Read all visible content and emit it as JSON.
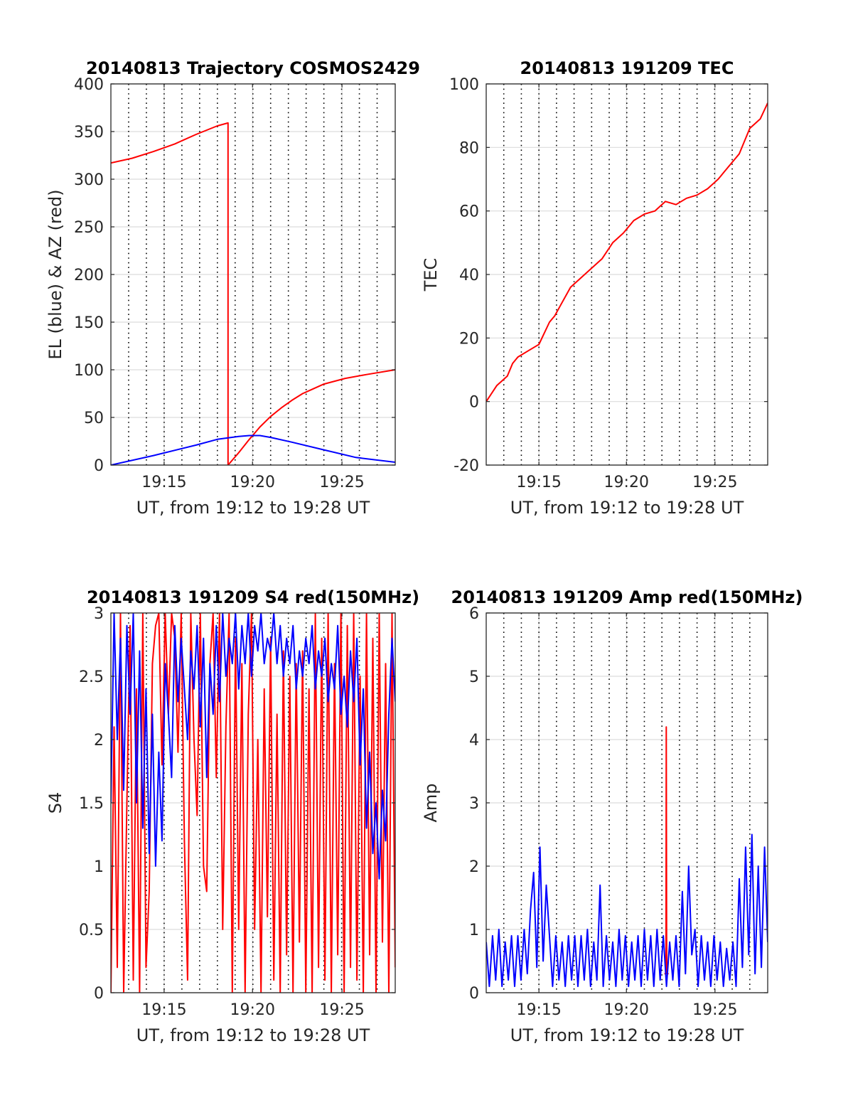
{
  "chart_data": [
    {
      "id": "trajectory",
      "type": "line",
      "title": "20140813 Trajectory COSMOS2429",
      "xlabel": "UT, from 19:12 to 19:28 UT",
      "ylabel": "EL (blue) & AZ (red)",
      "xlim": [
        19.2,
        19.467
      ],
      "ylim": [
        0,
        400
      ],
      "xticks": [
        19.25,
        19.333,
        19.417
      ],
      "xtick_labels": [
        "19:15",
        "19:20",
        "19:25"
      ],
      "yticks": [
        0,
        50,
        100,
        150,
        200,
        250,
        300,
        350,
        400
      ],
      "ytick_labels": [
        "0",
        "50",
        "100",
        "150",
        "200",
        "250",
        "300",
        "350",
        "400"
      ],
      "grid": true,
      "minute_gridlines": true,
      "series": [
        {
          "color": "#ff0000",
          "x": [
            19.2,
            19.22,
            19.24,
            19.26,
            19.28,
            19.3,
            19.31,
            19.31,
            19.32,
            19.33,
            19.34,
            19.35,
            19.36,
            19.37,
            19.38,
            19.39,
            19.4,
            19.42,
            19.44,
            19.467
          ],
          "y": [
            317,
            322,
            329,
            337,
            347,
            356,
            359,
            0,
            13,
            27,
            40,
            51,
            60,
            68,
            75,
            80,
            85,
            91,
            95,
            100
          ]
        },
        {
          "color": "#0000ff",
          "x": [
            19.2,
            19.24,
            19.28,
            19.3,
            19.32,
            19.33,
            19.34,
            19.35,
            19.37,
            19.4,
            19.43,
            19.467
          ],
          "y": [
            0,
            10,
            21,
            27,
            30,
            31,
            31,
            29,
            24,
            16,
            8,
            3
          ]
        }
      ]
    },
    {
      "id": "tec",
      "type": "line",
      "title": "20140813 191209 TEC",
      "xlabel": "UT, from 19:12 to 19:28 UT",
      "ylabel": "TEC",
      "xlim": [
        19.2,
        19.467
      ],
      "ylim": [
        -20,
        100
      ],
      "xticks": [
        19.25,
        19.333,
        19.417
      ],
      "xtick_labels": [
        "19:15",
        "19:20",
        "19:25"
      ],
      "yticks": [
        -20,
        0,
        20,
        40,
        60,
        80,
        100
      ],
      "ytick_labels": [
        "-20",
        "0",
        "20",
        "40",
        "60",
        "80",
        "100"
      ],
      "grid": true,
      "minute_gridlines": true,
      "series": [
        {
          "color": "#ff0000",
          "x": [
            19.2,
            19.21,
            19.22,
            19.225,
            19.23,
            19.24,
            19.25,
            19.26,
            19.265,
            19.27,
            19.28,
            19.29,
            19.3,
            19.31,
            19.32,
            19.33,
            19.34,
            19.35,
            19.36,
            19.37,
            19.38,
            19.39,
            19.4,
            19.41,
            19.42,
            19.43,
            19.44,
            19.45,
            19.46,
            19.467
          ],
          "y": [
            0,
            5,
            8,
            12,
            14,
            16,
            18,
            25,
            27,
            30,
            36,
            39,
            42,
            45,
            50,
            53,
            57,
            59,
            60,
            63,
            62,
            64,
            65,
            67,
            70,
            74,
            78,
            86,
            89,
            94
          ]
        }
      ]
    },
    {
      "id": "s4",
      "type": "line",
      "title": "20140813 191209 S4 red(150MHz)",
      "xlabel": "UT, from 19:12 to 19:28 UT",
      "ylabel": "S4",
      "xlim": [
        19.2,
        19.467
      ],
      "ylim": [
        0,
        3
      ],
      "xticks": [
        19.25,
        19.333,
        19.417
      ],
      "xtick_labels": [
        "19:15",
        "19:20",
        "19:25"
      ],
      "yticks": [
        0,
        0.5,
        1,
        1.5,
        2,
        2.5,
        3
      ],
      "ytick_labels": [
        "0",
        "0.5",
        "1",
        "1.5",
        "2",
        "2.5",
        "3"
      ],
      "grid": true,
      "minute_gridlines": true,
      "series": [
        {
          "color": "#ff0000",
          "x": [
            19.2,
            19.203,
            19.206,
            19.209,
            19.212,
            19.215,
            19.218,
            19.221,
            19.224,
            19.227,
            19.23,
            19.233,
            19.236,
            19.239,
            19.242,
            19.245,
            19.248,
            19.251,
            19.254,
            19.257,
            19.26,
            19.263,
            19.266,
            19.269,
            19.272,
            19.275,
            19.278,
            19.281,
            19.284,
            19.287,
            19.29,
            19.293,
            19.296,
            19.299,
            19.302,
            19.305,
            19.308,
            19.311,
            19.314,
            19.317,
            19.32,
            19.323,
            19.326,
            19.329,
            19.332,
            19.335,
            19.338,
            19.341,
            19.344,
            19.347,
            19.35,
            19.353,
            19.356,
            19.359,
            19.362,
            19.365,
            19.368,
            19.371,
            19.374,
            19.377,
            19.38,
            19.383,
            19.386,
            19.389,
            19.392,
            19.395,
            19.398,
            19.401,
            19.404,
            19.407,
            19.41,
            19.413,
            19.416,
            19.419,
            19.422,
            19.425,
            19.428,
            19.431,
            19.434,
            19.437,
            19.44,
            19.443,
            19.446,
            19.449,
            19.452,
            19.455,
            19.458,
            19.461,
            19.464,
            19.467
          ],
          "y": [
            0,
            2.1,
            0.2,
            3,
            0,
            1.5,
            2.9,
            0.1,
            2.4,
            0,
            3,
            0.2,
            0.8,
            2.6,
            2.9,
            3,
            1.8,
            3,
            2.2,
            3,
            2.8,
            1.9,
            3,
            1.2,
            0.1,
            3,
            2.0,
            1.4,
            3,
            1.0,
            0.8,
            2.6,
            3,
            1.7,
            3,
            0.5,
            2.1,
            3,
            0,
            2.8,
            0.5,
            2.6,
            0,
            2.2,
            3,
            0.5,
            2.0,
            0,
            2.4,
            0.6,
            2.8,
            0.1,
            2.2,
            0,
            2.7,
            0.3,
            2.5,
            0,
            2.6,
            0.4,
            2.7,
            0,
            2.4,
            0,
            3,
            0.2,
            2.8,
            0.1,
            3,
            0,
            2.6,
            0.3,
            3,
            0,
            2.9,
            0.2,
            3,
            0.1,
            2.5,
            0,
            3,
            0.3,
            2.8,
            0,
            3,
            0.4,
            2.6,
            0,
            3,
            0.2
          ]
        },
        {
          "color": "#0000ff",
          "x": [
            19.2,
            19.203,
            19.206,
            19.209,
            19.212,
            19.215,
            19.218,
            19.221,
            19.224,
            19.227,
            19.23,
            19.233,
            19.236,
            19.239,
            19.242,
            19.245,
            19.248,
            19.251,
            19.254,
            19.257,
            19.26,
            19.263,
            19.266,
            19.269,
            19.272,
            19.275,
            19.278,
            19.281,
            19.284,
            19.287,
            19.29,
            19.293,
            19.296,
            19.299,
            19.302,
            19.305,
            19.308,
            19.311,
            19.314,
            19.317,
            19.32,
            19.323,
            19.326,
            19.329,
            19.332,
            19.335,
            19.338,
            19.341,
            19.344,
            19.347,
            19.35,
            19.353,
            19.356,
            19.359,
            19.362,
            19.365,
            19.368,
            19.371,
            19.374,
            19.377,
            19.38,
            19.383,
            19.386,
            19.389,
            19.392,
            19.395,
            19.398,
            19.401,
            19.404,
            19.407,
            19.41,
            19.413,
            19.416,
            19.419,
            19.422,
            19.425,
            19.428,
            19.431,
            19.434,
            19.437,
            19.44,
            19.443,
            19.446,
            19.449,
            19.452,
            19.455,
            19.458,
            19.461,
            19.464,
            19.467
          ],
          "y": [
            1.5,
            3,
            2.0,
            2.8,
            1.6,
            2.9,
            2.2,
            3,
            1.5,
            2.7,
            1.3,
            2.4,
            1.1,
            2.2,
            1.0,
            1.9,
            1.2,
            2.6,
            2.2,
            1.7,
            2.9,
            2.3,
            2.8,
            2.4,
            2.0,
            2.7,
            2.4,
            2.9,
            2.1,
            2.8,
            1.7,
            2.6,
            2.2,
            2.9,
            2.3,
            3,
            2.5,
            2.8,
            2.6,
            3,
            2.4,
            2.9,
            2.6,
            3,
            2.5,
            2.9,
            2.7,
            3,
            2.6,
            2.8,
            2.7,
            3,
            2.6,
            2.9,
            2.5,
            2.8,
            2.6,
            2.9,
            2.4,
            2.7,
            2.5,
            2.8,
            2.6,
            2.9,
            2.4,
            2.7,
            2.5,
            2.8,
            2.3,
            2.6,
            2.4,
            2.9,
            2.2,
            2.5,
            2.1,
            2.7,
            2.3,
            2.8,
            1.8,
            2.4,
            1.3,
            1.9,
            1.1,
            1.5,
            0.9,
            1.6,
            1.2,
            2.2,
            2.8,
            2.3
          ]
        }
      ]
    },
    {
      "id": "amp",
      "type": "line",
      "title": "20140813 191209 Amp red(150MHz)",
      "xlabel": "UT, from 19:12 to 19:28 UT",
      "ylabel": "Amp",
      "xlim": [
        19.2,
        19.467
      ],
      "ylim": [
        0,
        6
      ],
      "xticks": [
        19.25,
        19.333,
        19.417
      ],
      "xtick_labels": [
        "19:15",
        "19:20",
        "19:25"
      ],
      "yticks": [
        0,
        1,
        2,
        3,
        4,
        5,
        6
      ],
      "ytick_labels": [
        "0",
        "1",
        "2",
        "3",
        "4",
        "5",
        "6"
      ],
      "grid": true,
      "minute_gridlines": true,
      "series": [
        {
          "color": "#ff0000",
          "x": [
            19.369,
            19.3705,
            19.3708,
            19.3711,
            19.3714,
            19.373
          ],
          "y": [
            0.3,
            0.3,
            4.2,
            0.9,
            0.3,
            0.3
          ]
        },
        {
          "color": "#0000ff",
          "x": [
            19.2,
            19.203,
            19.206,
            19.209,
            19.212,
            19.215,
            19.218,
            19.221,
            19.224,
            19.227,
            19.23,
            19.233,
            19.236,
            19.239,
            19.242,
            19.245,
            19.248,
            19.251,
            19.254,
            19.257,
            19.26,
            19.263,
            19.266,
            19.269,
            19.272,
            19.275,
            19.278,
            19.281,
            19.284,
            19.287,
            19.29,
            19.293,
            19.296,
            19.299,
            19.302,
            19.305,
            19.308,
            19.311,
            19.314,
            19.317,
            19.32,
            19.323,
            19.326,
            19.329,
            19.332,
            19.335,
            19.338,
            19.341,
            19.344,
            19.347,
            19.35,
            19.353,
            19.356,
            19.359,
            19.362,
            19.365,
            19.368,
            19.371,
            19.374,
            19.377,
            19.38,
            19.383,
            19.386,
            19.389,
            19.392,
            19.395,
            19.398,
            19.401,
            19.404,
            19.407,
            19.41,
            19.413,
            19.416,
            19.419,
            19.422,
            19.425,
            19.428,
            19.431,
            19.434,
            19.437,
            19.44,
            19.443,
            19.446,
            19.449,
            19.452,
            19.455,
            19.458,
            19.461,
            19.464,
            19.467
          ],
          "y": [
            0.8,
            0.1,
            0.9,
            0.2,
            1.0,
            0.1,
            0.8,
            0.2,
            0.9,
            0.1,
            0.9,
            0.2,
            1.0,
            0.3,
            1.3,
            1.9,
            0.4,
            2.3,
            0.5,
            1.7,
            0.9,
            0.1,
            0.9,
            0.2,
            0.8,
            0.1,
            0.9,
            0.2,
            0.9,
            0.1,
            0.9,
            0.2,
            1.0,
            0.1,
            0.8,
            0.2,
            1.7,
            0.1,
            0.9,
            0.2,
            0.8,
            0.1,
            1.0,
            0.2,
            0.9,
            0.1,
            0.8,
            0.2,
            0.9,
            0.1,
            1.0,
            0.2,
            0.9,
            0.1,
            1.0,
            0.2,
            0.9,
            0.1,
            0.8,
            0.2,
            0.9,
            0.1,
            1.6,
            0.3,
            2.0,
            0.6,
            1.0,
            0.1,
            0.9,
            0.2,
            0.8,
            0.1,
            0.9,
            0.2,
            0.8,
            0.1,
            0.7,
            0.2,
            0.8,
            0.1,
            1.8,
            0.4,
            2.3,
            0.6,
            2.5,
            0.3,
            2.0,
            0.4,
            2.3,
            0.8
          ]
        }
      ]
    }
  ]
}
